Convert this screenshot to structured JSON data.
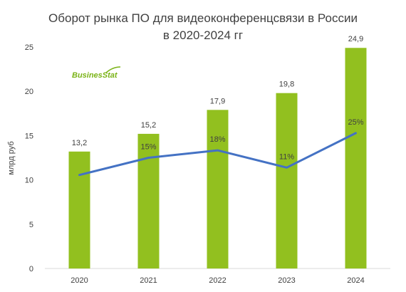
{
  "title_line1": "Оборот рынка ПО для видеоконференцсвязи в России",
  "title_line2": "в 2020-2024 гг",
  "logo_text": "BusinesStat",
  "colors": {
    "bar": "#92c01f",
    "line": "#4472c4",
    "text": "#404040",
    "axis": "#d9d9d9",
    "logo": "#7ab317"
  },
  "chart_data": {
    "type": "bar",
    "categories": [
      "2020",
      "2021",
      "2022",
      "2023",
      "2024"
    ],
    "values": [
      13.2,
      15.2,
      17.9,
      19.8,
      24.9
    ],
    "value_labels": [
      "13,2",
      "15,2",
      "17,9",
      "19,8",
      "24,9"
    ],
    "ylabel": "млрд руб",
    "ylim": [
      0,
      25
    ],
    "yticks": [
      "0",
      "5",
      "10",
      "15",
      "20",
      "25"
    ],
    "grid": false,
    "legend": "none",
    "growth_line": {
      "type": "line",
      "categories": [
        "2020",
        "2021",
        "2022",
        "2023",
        "2024"
      ],
      "values": [
        null,
        15,
        18,
        11,
        25
      ],
      "labels": [
        "",
        "15%",
        "18%",
        "11%",
        "25%"
      ],
      "unit": "%"
    }
  }
}
